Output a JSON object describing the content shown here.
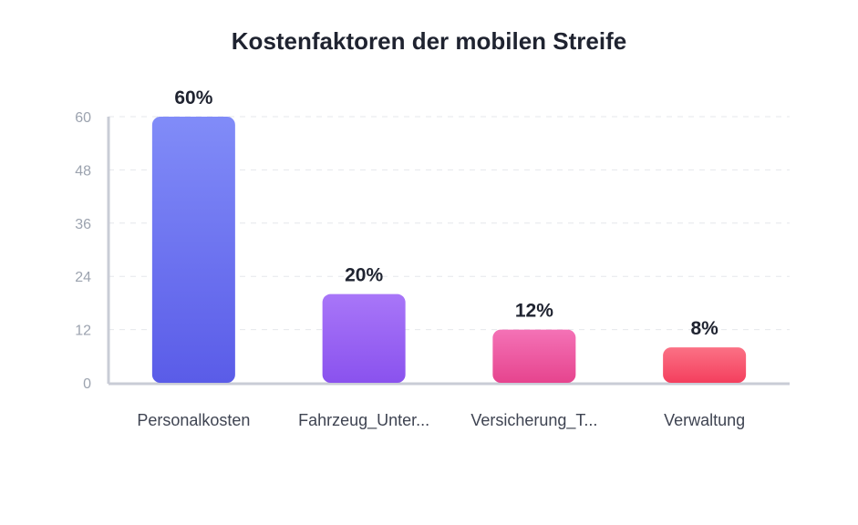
{
  "chart_data": {
    "type": "bar",
    "title": "Kostenfaktoren der mobilen Streife",
    "categories": [
      "Personalkosten",
      "Fahrzeug_Unter...",
      "Versicherung_T...",
      "Verwaltung"
    ],
    "values": [
      60,
      20,
      12,
      8
    ],
    "data_labels": [
      "60%",
      "20%",
      "12%",
      "8%"
    ],
    "xlabel": "",
    "ylabel": "",
    "ylim": [
      0,
      60
    ],
    "yticks": [
      0,
      12,
      24,
      36,
      48,
      60
    ],
    "grid": true,
    "colors": [
      [
        "#818cf8",
        "#5a5ce8"
      ],
      [
        "#a876f8",
        "#8a52ee"
      ],
      [
        "#f472b6",
        "#e6448e"
      ],
      [
        "#fb7185",
        "#f43f5e"
      ]
    ]
  }
}
